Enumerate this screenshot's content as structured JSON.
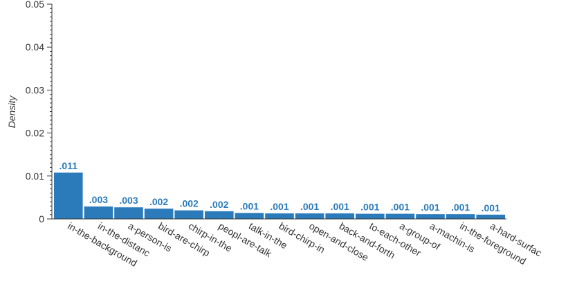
{
  "chart_data": {
    "type": "bar",
    "title": "",
    "xlabel": "",
    "ylabel": "Density",
    "ylim": [
      0,
      0.05
    ],
    "yticks": [
      0,
      0.01,
      0.02,
      0.03,
      0.04,
      0.05
    ],
    "ytick_labels": [
      "0",
      "0.01",
      "0.02",
      "0.03",
      "0.04",
      "0.05"
    ],
    "grid": false,
    "legend": "none",
    "bar_color": "#2b7bba",
    "label_color": "#2b7bba",
    "categories": [
      "in-the-background",
      "in-the-distanc",
      "a-person-is",
      "bird-are-chirp",
      "chirp-in-the",
      "peopl-are-talk",
      "talk-in-the",
      "bird-chirp-in",
      "open-and-close",
      "back-and-forth",
      "to-each-other",
      "a-group-of",
      "a-machin-is",
      "in-the-foreground",
      "a-hard-surfac"
    ],
    "values": [
      0.0108,
      0.0029,
      0.0027,
      0.0024,
      0.002,
      0.0018,
      0.0014,
      0.0013,
      0.0013,
      0.0013,
      0.0012,
      0.0012,
      0.0011,
      0.0011,
      0.001
    ],
    "data_labels": [
      ".011",
      ".003",
      ".003",
      ".002",
      ".002",
      ".002",
      ".001",
      ".001",
      ".001",
      ".001",
      ".001",
      ".001",
      ".001",
      ".001",
      ".001"
    ]
  }
}
